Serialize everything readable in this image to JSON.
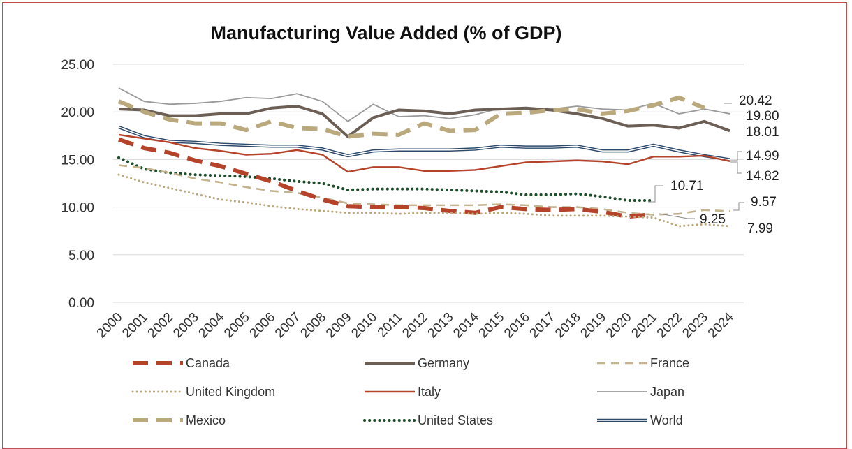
{
  "chart_data": {
    "type": "line",
    "title": "Manufacturing Value Added (% of GDP)",
    "xlabel": "",
    "ylabel": "",
    "ylim": [
      0,
      25
    ],
    "yticks": [
      "0.00",
      "5.00",
      "10.00",
      "15.00",
      "20.00",
      "25.00"
    ],
    "grid": true,
    "legend_position": "bottom",
    "x": [
      "2000",
      "2001",
      "2002",
      "2003",
      "2004",
      "2005",
      "2006",
      "2007",
      "2008",
      "2009",
      "2010",
      "2011",
      "2012",
      "2013",
      "2014",
      "2015",
      "2016",
      "2017",
      "2018",
      "2019",
      "2020",
      "2021",
      "2022",
      "2023",
      "2024"
    ],
    "series": [
      {
        "name": "Canada",
        "color": "#b5432a",
        "style": "dash-thick",
        "values": [
          17.1,
          16.2,
          15.7,
          14.9,
          14.3,
          13.5,
          12.7,
          11.7,
          10.8,
          10.1,
          10.0,
          10.0,
          9.9,
          9.6,
          9.4,
          10.0,
          9.8,
          9.7,
          9.8,
          9.5,
          9.0,
          9.25,
          null,
          null,
          null
        ]
      },
      {
        "name": "Germany",
        "color": "#6b5e55",
        "style": "solid-thick",
        "values": [
          20.3,
          20.2,
          19.6,
          19.6,
          19.8,
          19.8,
          20.4,
          20.6,
          19.8,
          17.4,
          19.4,
          20.2,
          20.1,
          19.8,
          20.2,
          20.3,
          20.4,
          20.2,
          19.8,
          19.3,
          18.5,
          18.6,
          18.3,
          19.0,
          18.01
        ]
      },
      {
        "name": "France",
        "color": "#c4b48e",
        "style": "dash",
        "values": [
          14.4,
          14.1,
          13.6,
          13.0,
          12.6,
          12.1,
          11.7,
          11.5,
          11.0,
          10.4,
          10.3,
          10.2,
          10.2,
          10.2,
          10.2,
          10.3,
          10.2,
          10.0,
          10.0,
          9.8,
          9.4,
          9.2,
          9.3,
          9.7,
          9.57
        ]
      },
      {
        "name": "United Kingdom",
        "color": "#bca77a",
        "style": "dot",
        "values": [
          13.4,
          12.6,
          12.0,
          11.4,
          10.8,
          10.5,
          10.1,
          9.8,
          9.6,
          9.4,
          9.4,
          9.3,
          9.4,
          9.4,
          9.3,
          9.4,
          9.3,
          9.1,
          9.1,
          9.1,
          9.0,
          8.9,
          8.0,
          8.2,
          7.99
        ]
      },
      {
        "name": "Italy",
        "color": "#b5432a",
        "style": "solid",
        "values": [
          17.6,
          17.2,
          16.8,
          16.2,
          15.9,
          15.5,
          15.6,
          16.0,
          15.5,
          13.7,
          14.2,
          14.2,
          13.8,
          13.8,
          13.9,
          14.3,
          14.7,
          14.8,
          14.9,
          14.8,
          14.5,
          15.3,
          15.3,
          15.4,
          14.82
        ]
      },
      {
        "name": "Japan",
        "color": "#9a9a9a",
        "style": "solid-thin",
        "values": [
          22.5,
          21.1,
          20.8,
          20.9,
          21.1,
          21.5,
          21.4,
          21.9,
          21.1,
          19.0,
          20.8,
          19.5,
          19.6,
          19.3,
          19.7,
          20.4,
          20.3,
          20.3,
          20.6,
          20.3,
          20.2,
          20.9,
          19.8,
          20.3,
          19.8
        ]
      },
      {
        "name": "Mexico",
        "color": "#b9a97c",
        "style": "dash-thick",
        "values": [
          21.1,
          20.0,
          19.2,
          18.8,
          18.8,
          18.1,
          19.0,
          18.3,
          18.2,
          17.4,
          17.7,
          17.6,
          18.8,
          18.0,
          18.1,
          19.8,
          19.9,
          20.2,
          20.3,
          19.8,
          20.1,
          20.7,
          21.5,
          20.42,
          null
        ]
      },
      {
        "name": "United States",
        "color": "#1e4d2b",
        "style": "dot-thick",
        "values": [
          15.2,
          14.0,
          13.6,
          13.4,
          13.3,
          13.2,
          13.0,
          12.7,
          12.5,
          11.8,
          11.9,
          11.9,
          11.9,
          11.8,
          11.7,
          11.6,
          11.3,
          11.3,
          11.4,
          11.1,
          10.7,
          10.71,
          null,
          null,
          null
        ]
      },
      {
        "name": "World",
        "color": "#2e4a6b",
        "style": "double",
        "values": [
          18.4,
          17.4,
          16.9,
          16.8,
          16.6,
          16.5,
          16.4,
          16.4,
          16.1,
          15.4,
          15.9,
          16.0,
          16.0,
          16.0,
          16.1,
          16.4,
          16.3,
          16.3,
          16.4,
          15.9,
          15.9,
          16.5,
          15.9,
          15.4,
          14.99
        ]
      }
    ],
    "end_labels": [
      {
        "text": "20.42",
        "series": "Mexico"
      },
      {
        "text": "19.80",
        "series": "Japan"
      },
      {
        "text": "18.01",
        "series": "Germany"
      },
      {
        "text": "14.99",
        "series": "World"
      },
      {
        "text": "14.82",
        "series": "Italy"
      },
      {
        "text": "10.71",
        "series": "United States"
      },
      {
        "text": "9.57",
        "series": "France"
      },
      {
        "text": "9.25",
        "series": "Canada"
      },
      {
        "text": "7.99",
        "series": "United Kingdom"
      }
    ]
  }
}
